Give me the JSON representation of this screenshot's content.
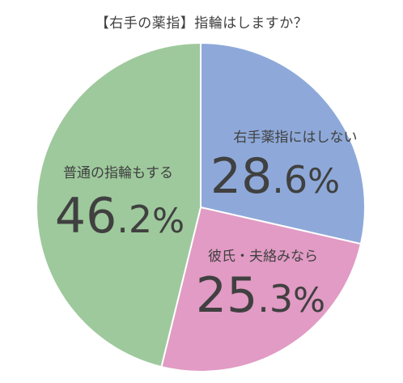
{
  "chart_data": {
    "type": "pie",
    "title": "【右手の薬指】指輪はしますか？",
    "start_angle_deg": 0,
    "direction": "clockwise",
    "slices": [
      {
        "label": "右手薬指にはしない",
        "value": 28.6,
        "display": "28.6%",
        "color": "#8ea9d9"
      },
      {
        "label": "彼氏・夫絡みなら",
        "value": 25.3,
        "display": "25.3%",
        "color": "#e19bc4"
      },
      {
        "label": "普通の指輪もする",
        "value": 46.2,
        "display": "46.2%",
        "color": "#9ec99c"
      }
    ]
  }
}
